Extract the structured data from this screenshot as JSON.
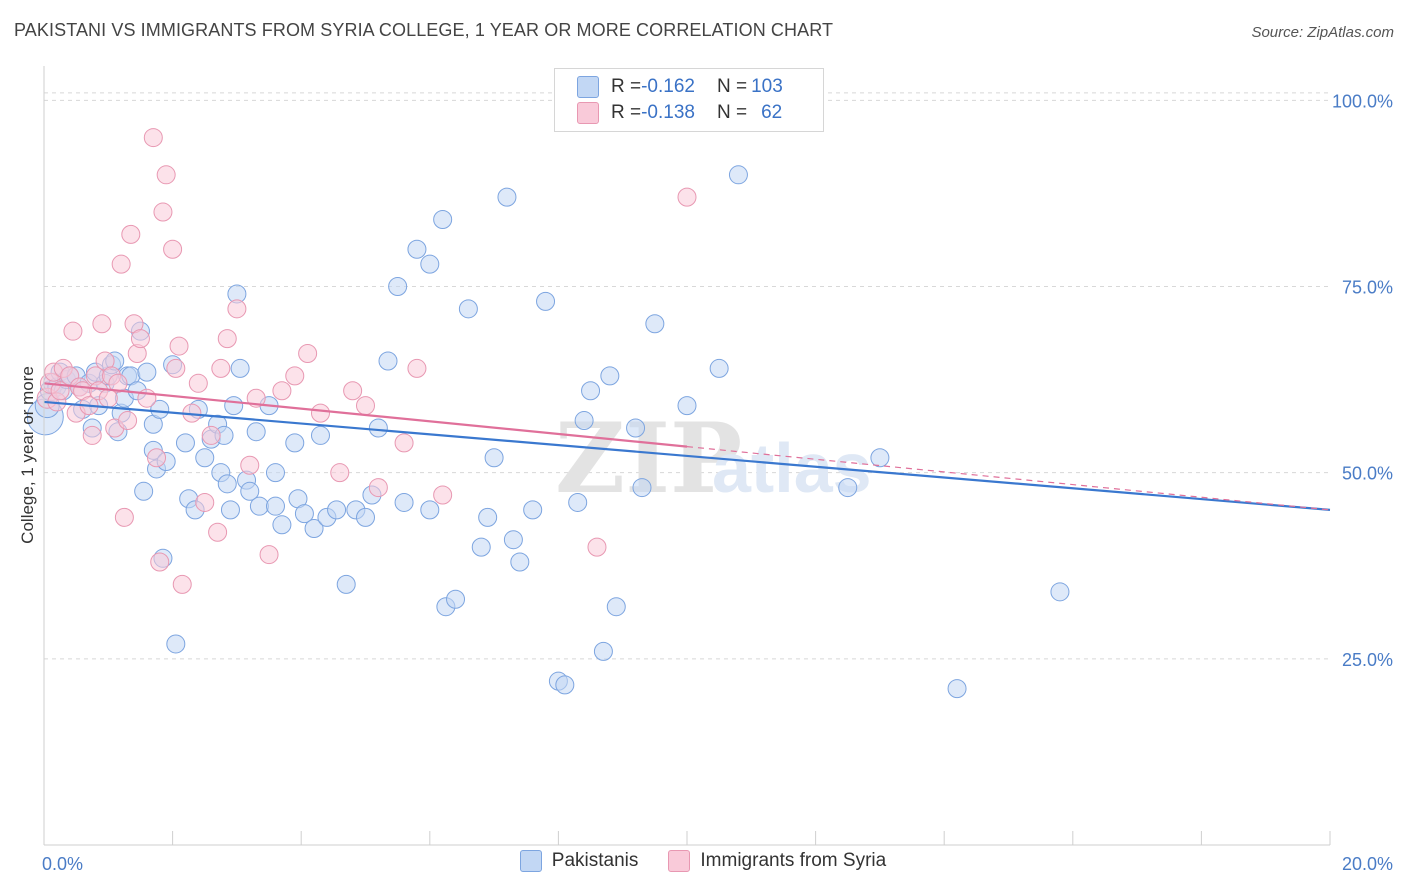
{
  "header": {
    "title": "PAKISTANI VS IMMIGRANTS FROM SYRIA COLLEGE, 1 YEAR OR MORE CORRELATION CHART",
    "source": "Source: ZipAtlas.com"
  },
  "stats_legend": {
    "row1": {
      "r_label": "R = ",
      "r_value": "-0.162",
      "n_label": "N = ",
      "n_value": "103"
    },
    "row2": {
      "r_label": "R = ",
      "r_value": "-0.138",
      "n_label": "N = ",
      "n_value": "62"
    }
  },
  "watermark": {
    "zip": "ZIP",
    "atlas": "atlas"
  },
  "colors": {
    "blue_fill": "#c2d7f4",
    "blue_stroke": "#7da5e0",
    "blue_line": "#3a78cf",
    "pink_fill": "#f9cad9",
    "pink_stroke": "#e898b2",
    "pink_line": "#e0709a",
    "axis_label": "#4a7cc6"
  },
  "chart_data": {
    "type": "scatter",
    "ylabel": "College, 1 year or more",
    "xlim": [
      0,
      20
    ],
    "ylim": [
      0,
      103
    ],
    "x_tick_labels": [
      {
        "value": 0,
        "label": "0.0%"
      },
      {
        "value": 20,
        "label": "20.0%"
      }
    ],
    "y_tick_labels": [
      {
        "value": 25,
        "label": "25.0%"
      },
      {
        "value": 50,
        "label": "50.0%"
      },
      {
        "value": 75,
        "label": "75.0%"
      },
      {
        "value": 100,
        "label": "100.0%"
      }
    ],
    "grid": true,
    "legend": "bottom",
    "series": [
      {
        "name": "Pakistanis",
        "color": "blue",
        "trend": {
          "x": [
            0,
            20
          ],
          "y": [
            59.5,
            45.0
          ]
        },
        "points": [
          [
            0.02,
            57.5,
            18
          ],
          [
            0.05,
            59,
            12
          ],
          [
            0.1,
            61,
            10
          ],
          [
            0.15,
            62,
            10
          ],
          [
            0.2,
            61.5,
            9
          ],
          [
            0.25,
            63.5,
            9
          ],
          [
            0.3,
            61,
            9
          ],
          [
            0.35,
            62.5,
            9
          ],
          [
            0.4,
            63,
            9
          ],
          [
            0.5,
            63,
            9
          ],
          [
            0.55,
            61.5,
            9
          ],
          [
            0.6,
            58.5,
            9
          ],
          [
            0.7,
            62,
            9
          ],
          [
            0.75,
            56,
            9
          ],
          [
            0.8,
            63.5,
            9
          ],
          [
            0.85,
            59,
            9
          ],
          [
            0.95,
            62,
            9
          ],
          [
            1.0,
            63,
            9
          ],
          [
            1.05,
            64.5,
            9
          ],
          [
            1.1,
            65,
            9
          ],
          [
            1.15,
            55.5,
            9
          ],
          [
            1.2,
            58,
            9
          ],
          [
            1.25,
            60,
            9
          ],
          [
            1.3,
            63,
            9
          ],
          [
            1.35,
            63,
            9
          ],
          [
            1.45,
            61,
            9
          ],
          [
            1.5,
            69,
            9
          ],
          [
            1.55,
            47.5,
            9
          ],
          [
            1.6,
            63.5,
            9
          ],
          [
            1.7,
            53,
            9
          ],
          [
            1.7,
            56.5,
            9
          ],
          [
            1.75,
            50.5,
            9
          ],
          [
            1.8,
            58.5,
            9
          ],
          [
            1.85,
            38.5,
            9
          ],
          [
            1.9,
            51.5,
            9
          ],
          [
            2.0,
            64.5,
            9
          ],
          [
            2.05,
            27,
            9
          ],
          [
            2.2,
            54,
            9
          ],
          [
            2.25,
            46.5,
            9
          ],
          [
            2.35,
            45,
            9
          ],
          [
            2.4,
            58.5,
            9
          ],
          [
            2.5,
            52,
            9
          ],
          [
            2.6,
            54.5,
            9
          ],
          [
            2.7,
            56.5,
            9
          ],
          [
            2.75,
            50,
            9
          ],
          [
            2.8,
            55,
            9
          ],
          [
            2.85,
            48.5,
            9
          ],
          [
            2.9,
            45,
            9
          ],
          [
            2.95,
            59,
            9
          ],
          [
            3.0,
            74,
            9
          ],
          [
            3.05,
            64,
            9
          ],
          [
            3.15,
            49,
            9
          ],
          [
            3.2,
            47.5,
            9
          ],
          [
            3.3,
            55.5,
            9
          ],
          [
            3.35,
            45.5,
            9
          ],
          [
            3.5,
            59,
            9
          ],
          [
            3.6,
            50,
            9
          ],
          [
            3.6,
            45.5,
            9
          ],
          [
            3.7,
            43,
            9
          ],
          [
            3.9,
            54,
            9
          ],
          [
            3.95,
            46.5,
            9
          ],
          [
            4.05,
            44.5,
            9
          ],
          [
            4.2,
            42.5,
            9
          ],
          [
            4.3,
            55,
            9
          ],
          [
            4.4,
            44,
            9
          ],
          [
            4.55,
            45,
            9
          ],
          [
            4.7,
            35,
            9
          ],
          [
            4.85,
            45,
            9
          ],
          [
            5.0,
            44,
            9
          ],
          [
            5.1,
            47,
            9
          ],
          [
            5.2,
            56,
            9
          ],
          [
            5.35,
            65,
            9
          ],
          [
            5.5,
            75,
            9
          ],
          [
            5.6,
            46,
            9
          ],
          [
            5.8,
            80,
            9
          ],
          [
            6.0,
            78,
            9
          ],
          [
            6.0,
            45,
            9
          ],
          [
            6.2,
            84,
            9
          ],
          [
            6.25,
            32,
            9
          ],
          [
            6.4,
            33,
            9
          ],
          [
            6.6,
            72,
            9
          ],
          [
            6.8,
            40,
            9
          ],
          [
            6.9,
            44,
            9
          ],
          [
            7.0,
            52,
            9
          ],
          [
            7.2,
            87,
            9
          ],
          [
            7.3,
            41,
            9
          ],
          [
            7.4,
            38,
            9
          ],
          [
            7.6,
            45,
            9
          ],
          [
            7.8,
            73,
            9
          ],
          [
            8.0,
            22,
            9
          ],
          [
            8.1,
            21.5,
            9
          ],
          [
            8.3,
            46,
            9
          ],
          [
            8.4,
            57,
            9
          ],
          [
            8.5,
            61,
            9
          ],
          [
            8.7,
            26,
            9
          ],
          [
            8.8,
            63,
            9
          ],
          [
            8.9,
            32,
            9
          ],
          [
            9.2,
            56,
            9
          ],
          [
            9.3,
            48,
            9
          ],
          [
            9.5,
            70,
            9
          ],
          [
            10.0,
            59,
            9
          ],
          [
            10.5,
            64,
            9
          ],
          [
            10.8,
            90,
            9
          ],
          [
            12.5,
            48,
            9
          ],
          [
            13.0,
            52,
            9
          ],
          [
            14.2,
            21,
            9
          ],
          [
            15.8,
            34,
            9
          ]
        ]
      },
      {
        "name": "Immigrants from Syria",
        "color": "pink",
        "trend": {
          "x": [
            0,
            20
          ],
          "y": [
            62.0,
            45.0
          ],
          "solid_until": 10.0
        },
        "points": [
          [
            0.05,
            60,
            10
          ],
          [
            0.1,
            62,
            10
          ],
          [
            0.15,
            63.5,
            9
          ],
          [
            0.2,
            59.5,
            9
          ],
          [
            0.25,
            61,
            9
          ],
          [
            0.3,
            64,
            9
          ],
          [
            0.4,
            63,
            9
          ],
          [
            0.45,
            69,
            9
          ],
          [
            0.5,
            58,
            9
          ],
          [
            0.55,
            61.5,
            9
          ],
          [
            0.6,
            61,
            9
          ],
          [
            0.7,
            59,
            9
          ],
          [
            0.75,
            55,
            9
          ],
          [
            0.8,
            63,
            9
          ],
          [
            0.85,
            61,
            9
          ],
          [
            0.9,
            70,
            9
          ],
          [
            0.95,
            65,
            9
          ],
          [
            1.0,
            60,
            9
          ],
          [
            1.05,
            63,
            9
          ],
          [
            1.1,
            56,
            9
          ],
          [
            1.15,
            62,
            9
          ],
          [
            1.2,
            78,
            9
          ],
          [
            1.25,
            44,
            9
          ],
          [
            1.3,
            57,
            9
          ],
          [
            1.35,
            82,
            9
          ],
          [
            1.4,
            70,
            9
          ],
          [
            1.45,
            66,
            9
          ],
          [
            1.5,
            68,
            9
          ],
          [
            1.6,
            60,
            9
          ],
          [
            1.7,
            95,
            9
          ],
          [
            1.75,
            52,
            9
          ],
          [
            1.8,
            38,
            9
          ],
          [
            1.85,
            85,
            9
          ],
          [
            1.9,
            90,
            9
          ],
          [
            2.0,
            80,
            9
          ],
          [
            2.05,
            64,
            9
          ],
          [
            2.1,
            67,
            9
          ],
          [
            2.15,
            35,
            9
          ],
          [
            2.3,
            58,
            9
          ],
          [
            2.4,
            62,
            9
          ],
          [
            2.5,
            46,
            9
          ],
          [
            2.6,
            55,
            9
          ],
          [
            2.7,
            42,
            9
          ],
          [
            2.75,
            64,
            9
          ],
          [
            2.85,
            68,
            9
          ],
          [
            3.0,
            72,
            9
          ],
          [
            3.2,
            51,
            9
          ],
          [
            3.3,
            60,
            9
          ],
          [
            3.5,
            39,
            9
          ],
          [
            3.7,
            61,
            9
          ],
          [
            3.9,
            63,
            9
          ],
          [
            4.1,
            66,
            9
          ],
          [
            4.3,
            58,
            9
          ],
          [
            4.6,
            50,
            9
          ],
          [
            4.8,
            61,
            9
          ],
          [
            5.0,
            59,
            9
          ],
          [
            5.2,
            48,
            9
          ],
          [
            5.6,
            54,
            9
          ],
          [
            5.8,
            64,
            9
          ],
          [
            6.2,
            47,
            9
          ],
          [
            8.6,
            40,
            9
          ],
          [
            10.0,
            87,
            9
          ]
        ]
      }
    ]
  }
}
